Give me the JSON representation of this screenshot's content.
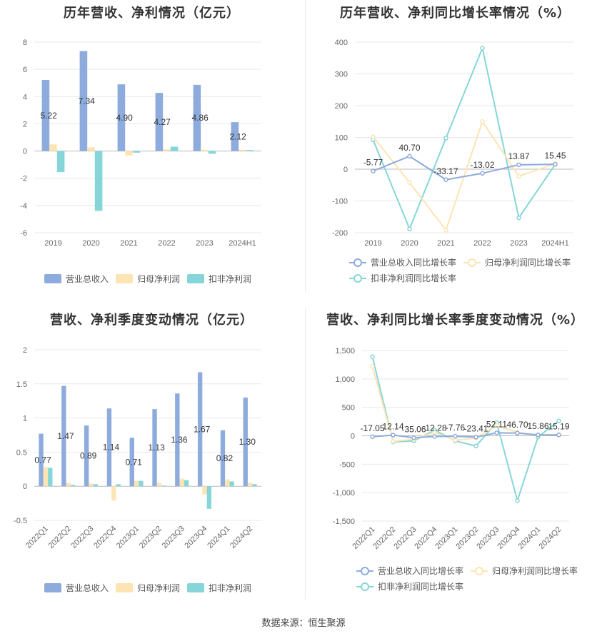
{
  "source_note": "数据来源：恒生聚源",
  "chart_data": [
    {
      "type": "bar",
      "title": "历年营收、净利情况（亿元）",
      "categories": [
        "2019",
        "2020",
        "2021",
        "2022",
        "2023",
        "2024H1"
      ],
      "ylim": [
        -6,
        8
      ],
      "yticks": [
        -6,
        -4,
        -2,
        0,
        2,
        4,
        6,
        8
      ],
      "series": [
        {
          "name": "营业总收入",
          "color": "#8dabdc",
          "values": [
            5.22,
            7.34,
            4.9,
            4.27,
            4.86,
            2.12
          ],
          "labels": [
            "5.22",
            "7.34",
            "4.90",
            "4.27",
            "4.86",
            "2.12"
          ]
        },
        {
          "name": "归母净利润",
          "color": "#fde4b3",
          "values": [
            0.49,
            0.28,
            -0.33,
            0.12,
            0.09,
            0.1
          ]
        },
        {
          "name": "扣非净利润",
          "color": "#86d6d9",
          "values": [
            -1.55,
            -4.4,
            -0.12,
            0.32,
            -0.2,
            0.07
          ]
        }
      ],
      "legend": "bottom"
    },
    {
      "type": "line",
      "title": "历年营收、净利同比增长率情况（%）",
      "categories": [
        "2019",
        "2020",
        "2021",
        "2022",
        "2023",
        "2024H1"
      ],
      "ylim": [
        -200,
        400
      ],
      "yticks": [
        -200,
        -100,
        0,
        100,
        200,
        300,
        400
      ],
      "series": [
        {
          "name": "营业总收入同比增长率",
          "color": "#8dabdc",
          "values": [
            -5.77,
            40.7,
            -33.17,
            -13.02,
            13.87,
            15.45
          ],
          "labels": [
            "-5.77",
            "40.70",
            "-33.17",
            "-13.02",
            "13.87",
            "15.45"
          ]
        },
        {
          "name": "归母净利润同比增长率",
          "color": "#fde4b3",
          "values": [
            102,
            -42,
            -192,
            150,
            -22,
            17
          ]
        },
        {
          "name": "扣非净利润同比增长率",
          "color": "#86d6d9",
          "values": [
            92,
            -188,
            98,
            381,
            -153,
            15
          ]
        }
      ],
      "legend": "bottom"
    },
    {
      "type": "bar",
      "title": "营收、净利季度变动情况（亿元）",
      "categories": [
        "2022Q1",
        "2022Q2",
        "2022Q3",
        "2022Q4",
        "2023Q1",
        "2023Q2",
        "2023Q3",
        "2023Q4",
        "2024Q1",
        "2024Q2"
      ],
      "ylim": [
        -0.5,
        2
      ],
      "yticks": [
        -0.5,
        0,
        0.5,
        1,
        1.5,
        2
      ],
      "series": [
        {
          "name": "营业总收入",
          "color": "#8dabdc",
          "values": [
            0.77,
            1.47,
            0.89,
            1.14,
            0.71,
            1.13,
            1.36,
            1.67,
            0.82,
            1.3
          ],
          "labels": [
            "0.77",
            "1.47",
            "0.89",
            "1.14",
            "0.71",
            "1.13",
            "1.36",
            "1.67",
            "0.82",
            "1.30"
          ]
        },
        {
          "name": "归母净利润",
          "color": "#fde4b3",
          "values": [
            0.28,
            0.05,
            0.04,
            -0.21,
            0.08,
            0.05,
            0.11,
            -0.12,
            0.1,
            0.05
          ]
        },
        {
          "name": "扣非净利润",
          "color": "#86d6d9",
          "values": [
            0.27,
            0.02,
            0.03,
            0.03,
            0.08,
            0.01,
            0.09,
            -0.33,
            0.07,
            0.03
          ]
        }
      ],
      "legend": "bottom"
    },
    {
      "type": "line",
      "title": "营收、净利同比增长率季度变动情况（%）",
      "categories": [
        "2022Q1",
        "2022Q2",
        "2022Q3",
        "2022Q4",
        "2023Q1",
        "2023Q2",
        "2023Q3",
        "2023Q4",
        "2024Q1",
        "2024Q2"
      ],
      "ylim": [
        -1500,
        1500
      ],
      "yticks": [
        -1500,
        -1000,
        -500,
        0,
        500,
        1000,
        1500
      ],
      "yticklabels": [
        "-1,500",
        "-1,000",
        "-500",
        "0",
        "500",
        "1,000",
        "1,500"
      ],
      "series": [
        {
          "name": "营业总收入同比增长率",
          "color": "#8dabdc",
          "values": [
            -17.05,
            12.14,
            -35.06,
            -12.28,
            -7.76,
            -23.41,
            52.11,
            46.7,
            15.86,
            15.19
          ],
          "labels": [
            "-17.05",
            "12.14",
            "-35.06",
            "-12.28",
            "-7.76",
            "-23.41",
            "52.11",
            "46.70",
            "15.86",
            "15.19"
          ]
        },
        {
          "name": "归母净利润同比增长率",
          "color": "#fde4b3",
          "values": [
            1220,
            -100,
            -60,
            60,
            -80,
            -40,
            180,
            60,
            10,
            20
          ]
        },
        {
          "name": "扣非净利润同比增长率",
          "color": "#86d6d9",
          "values": [
            1390,
            -110,
            -90,
            100,
            -90,
            -180,
            230,
            -1140,
            -20,
            260
          ]
        }
      ],
      "legend": "bottom"
    }
  ]
}
